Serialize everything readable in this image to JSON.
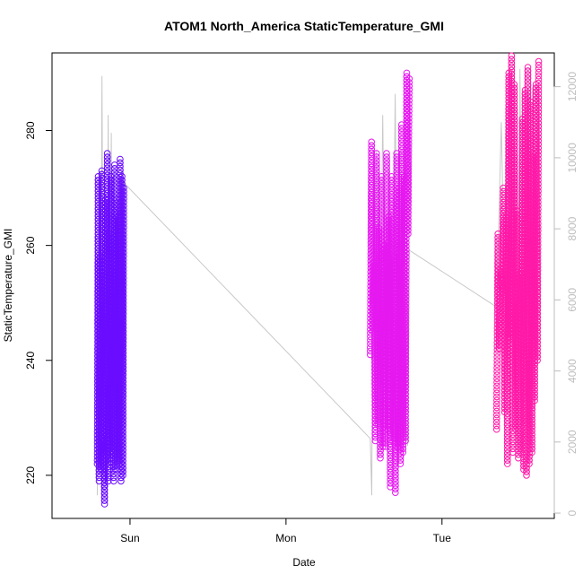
{
  "chart_data": {
    "type": "scatter",
    "title": "ATOM1 North_America StaticTemperature_GMI",
    "xlabel": "Date",
    "ylabel": "StaticTemperature_GMI",
    "x_ticks": [
      "Sun",
      "Mon",
      "Tue"
    ],
    "x_tick_values": [
      1.0,
      2.0,
      3.0
    ],
    "xlim": [
      0.5,
      3.72
    ],
    "ylim": [
      212.5,
      293.5
    ],
    "y_ticks": [
      220,
      240,
      260,
      280
    ],
    "y2lim": [
      -150,
      12950
    ],
    "y2_ticks": [
      0,
      2000,
      4000,
      6000,
      8000,
      10000,
      12000
    ],
    "grid": false,
    "legend": "none",
    "colors": {
      "day1": "#6a0dff",
      "day2": "#e619f0",
      "day3": "#ff1aa8",
      "secondary_line": "#c8c8c8"
    },
    "series": [
      {
        "color": "#6a0dff",
        "x_start": 0.79,
        "x_end": 0.96,
        "values": [
          222,
          272,
          219,
          258,
          221,
          273,
          224,
          226,
          215,
          268,
          222,
          276,
          219,
          262,
          225,
          272,
          223,
          255,
          219,
          274,
          221,
          268,
          224,
          265,
          222,
          275,
          219,
          272,
          220,
          270
        ]
      },
      {
        "color": "#e619f0",
        "x_start": 2.54,
        "x_end": 2.79,
        "values": [
          241,
          278,
          245,
          257,
          226,
          276,
          229,
          263,
          223,
          272,
          225,
          260,
          225,
          276,
          228,
          265,
          218,
          272,
          226,
          258,
          217,
          276,
          225,
          270,
          222,
          281,
          224,
          272,
          226,
          290,
          262,
          289
        ]
      },
      {
        "color": "#ff1aa8",
        "x_start": 3.35,
        "x_end": 3.62,
        "values": [
          228,
          262,
          242,
          256,
          252,
          270,
          231,
          265,
          222,
          290,
          244,
          293,
          224,
          288,
          228,
          266,
          223,
          255,
          224,
          282,
          221,
          287,
          220,
          291,
          222,
          285,
          224,
          276,
          233,
          288,
          240,
          292
        ]
      }
    ],
    "secondary_series": {
      "axis": "right",
      "x": [
        0.79,
        0.8,
        0.81,
        0.82,
        0.83,
        0.84,
        0.85,
        0.86,
        0.87,
        0.88,
        0.89,
        0.9,
        0.91,
        0.92,
        0.93,
        0.94,
        0.95,
        0.96,
        2.54,
        2.55,
        2.56,
        2.57,
        2.58,
        2.6,
        2.62,
        2.64,
        2.66,
        2.68,
        2.7,
        2.72,
        2.74,
        2.76,
        2.78,
        2.79,
        3.35,
        3.38,
        3.4,
        3.42,
        3.44,
        3.46,
        3.48,
        3.5,
        3.52,
        3.54,
        3.56,
        3.58,
        3.6,
        3.62
      ],
      "values": [
        500,
        3800,
        1200,
        12300,
        2600,
        9200,
        1900,
        11200,
        2300,
        10700,
        1600,
        9600,
        2800,
        7900,
        1500,
        8700,
        2400,
        9300,
        2100,
        500,
        9800,
        2400,
        10200,
        2600,
        11200,
        3000,
        9700,
        2900,
        11800,
        2300,
        10200,
        2900,
        1900,
        7400,
        5800,
        11000,
        6600,
        3600,
        10400,
        8100,
        1900,
        12500,
        3500,
        11400,
        2000,
        12000,
        6700,
        11800
      ]
    }
  }
}
